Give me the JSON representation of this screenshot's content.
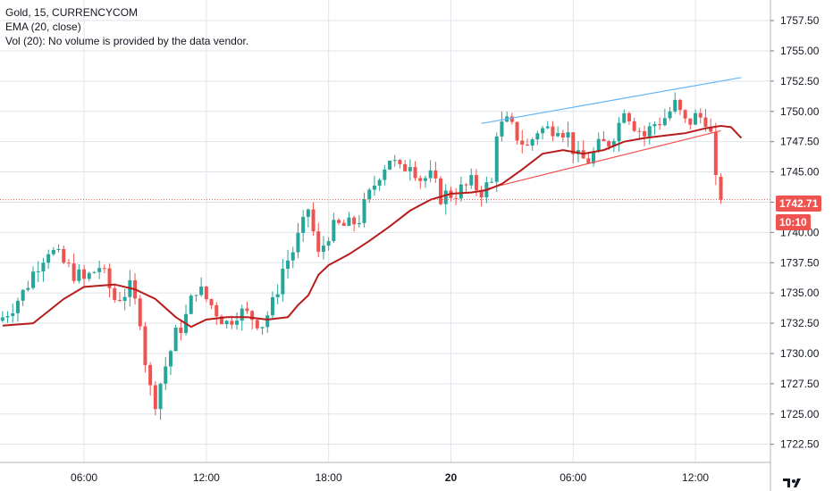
{
  "legend": {
    "symbol_line": "Gold, 15, CURRENCYCOM",
    "ema_line": "EMA (20, close)",
    "volume_line": "Vol (20): No volume is provided by the data vendor."
  },
  "price_badge": {
    "value": "1742.71",
    "timer": "10:10",
    "color": "#ef5350"
  },
  "colors": {
    "up": "#26a69a",
    "down": "#ef5350",
    "ema": "#b71c1c",
    "trend_upper": "#64b5f6",
    "trend_lower": "#ef5350",
    "grid": "#e0e3eb",
    "axis_text": "#131722"
  },
  "chart_data": {
    "type": "candlestick",
    "title": "Gold, 15, CURRENCYCOM",
    "y_ticks": [
      "1757.50",
      "1755.00",
      "1752.50",
      "1750.00",
      "1747.50",
      "1745.00",
      "1742.50",
      "1740.00",
      "1737.50",
      "1735.00",
      "1732.50",
      "1730.00",
      "1727.50",
      "1725.00",
      "1722.50"
    ],
    "y_range": [
      1721.0,
      1759.2
    ],
    "x_ticks": [
      {
        "label": "06:00",
        "bar": 16
      },
      {
        "label": "12:00",
        "bar": 40
      },
      {
        "label": "18:00",
        "bar": 64
      },
      {
        "label": "20",
        "bar": 88
      },
      {
        "label": "06:00",
        "bar": 112
      },
      {
        "label": "12:00",
        "bar": 136
      }
    ],
    "bar_count_visible": 150,
    "last_price": 1742.71,
    "ohlc_close_path": [
      [
        0,
        1733.0
      ],
      [
        4,
        1735.0
      ],
      [
        7,
        1737.5
      ],
      [
        9,
        1738.7
      ],
      [
        13,
        1737.0
      ],
      [
        16,
        1736.0
      ],
      [
        19,
        1737.2
      ],
      [
        22,
        1734.5
      ],
      [
        25,
        1735.3
      ],
      [
        27,
        1733.0
      ],
      [
        28,
        1729.5
      ],
      [
        29,
        1727.0
      ],
      [
        30,
        1726.2
      ],
      [
        32,
        1729.0
      ],
      [
        34,
        1731.5
      ],
      [
        36,
        1733.0
      ],
      [
        38,
        1735.5
      ],
      [
        40,
        1734.5
      ],
      [
        42,
        1733.5
      ],
      [
        44,
        1732.5
      ],
      [
        46,
        1733.5
      ],
      [
        49,
        1733.0
      ],
      [
        51,
        1732.5
      ],
      [
        53,
        1734.0
      ],
      [
        55,
        1737.0
      ],
      [
        57,
        1738.5
      ],
      [
        59,
        1740.5
      ],
      [
        60,
        1742.0
      ],
      [
        62,
        1738.0
      ],
      [
        64,
        1740.0
      ],
      [
        66,
        1740.5
      ],
      [
        68,
        1740.5
      ],
      [
        70,
        1741.2
      ],
      [
        72,
        1743.0
      ],
      [
        74,
        1745.0
      ],
      [
        76,
        1746.2
      ],
      [
        78,
        1745.0
      ],
      [
        80,
        1746.0
      ],
      [
        82,
        1744.5
      ],
      [
        84,
        1744.5
      ],
      [
        86,
        1743.0
      ],
      [
        88,
        1743.2
      ],
      [
        90,
        1743.5
      ],
      [
        92,
        1744.0
      ],
      [
        94,
        1743.5
      ],
      [
        96,
        1744.0
      ],
      [
        97,
        1748.5
      ],
      [
        99,
        1749.0
      ],
      [
        101,
        1748.0
      ],
      [
        103,
        1747.0
      ],
      [
        105,
        1748.5
      ],
      [
        107,
        1748.5
      ],
      [
        109,
        1749.0
      ],
      [
        111,
        1748.0
      ],
      [
        113,
        1746.0
      ],
      [
        115,
        1746.0
      ],
      [
        117,
        1747.0
      ],
      [
        119,
        1747.5
      ],
      [
        121,
        1749.0
      ],
      [
        122,
        1750.5
      ],
      [
        124,
        1749.0
      ],
      [
        126,
        1748.0
      ],
      [
        128,
        1749.0
      ],
      [
        130,
        1749.5
      ],
      [
        132,
        1750.5
      ],
      [
        134,
        1749.0
      ],
      [
        136,
        1749.5
      ],
      [
        138,
        1749.5
      ],
      [
        139,
        1748.0
      ],
      [
        140,
        1744.0
      ],
      [
        141,
        1742.7
      ]
    ],
    "ema": {
      "name": "EMA (20, close)",
      "values": [
        [
          0,
          1732.3
        ],
        [
          6,
          1732.5
        ],
        [
          12,
          1734.5
        ],
        [
          16,
          1735.5
        ],
        [
          22,
          1735.7
        ],
        [
          26,
          1735.3
        ],
        [
          30,
          1734.5
        ],
        [
          34,
          1733.0
        ],
        [
          37,
          1732.2
        ],
        [
          40,
          1732.8
        ],
        [
          44,
          1733.0
        ],
        [
          48,
          1733.0
        ],
        [
          52,
          1732.8
        ],
        [
          56,
          1733.0
        ],
        [
          58,
          1734.0
        ],
        [
          60,
          1734.8
        ],
        [
          62,
          1736.5
        ],
        [
          64,
          1737.3
        ],
        [
          68,
          1738.2
        ],
        [
          72,
          1739.3
        ],
        [
          76,
          1740.5
        ],
        [
          80,
          1741.8
        ],
        [
          84,
          1742.7
        ],
        [
          88,
          1743.2
        ],
        [
          92,
          1743.3
        ],
        [
          95,
          1743.5
        ],
        [
          98,
          1744.0
        ],
        [
          102,
          1745.2
        ],
        [
          106,
          1746.5
        ],
        [
          110,
          1746.8
        ],
        [
          114,
          1746.5
        ],
        [
          118,
          1746.8
        ],
        [
          122,
          1747.5
        ],
        [
          126,
          1747.8
        ],
        [
          130,
          1748.0
        ],
        [
          134,
          1748.2
        ],
        [
          138,
          1748.6
        ],
        [
          141,
          1748.8
        ],
        [
          143,
          1748.7
        ],
        [
          145,
          1747.8
        ]
      ]
    },
    "trendlines": [
      {
        "name": "upper",
        "from": [
          94,
          1749.0
        ],
        "to": [
          145,
          1752.8
        ]
      },
      {
        "name": "lower",
        "from": [
          95,
          1743.6
        ],
        "to": [
          141,
          1748.4
        ]
      }
    ]
  }
}
